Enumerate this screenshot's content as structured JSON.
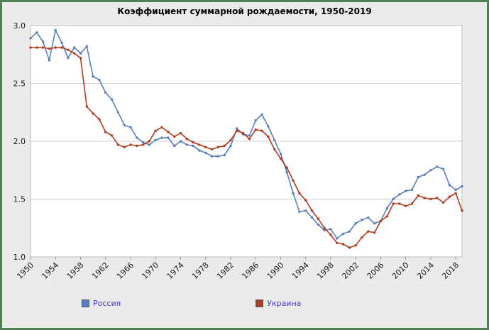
{
  "title": "Коэффициент суммарной рождаемости, 1950-2019",
  "colors": {
    "frame_border": "#4f7f53",
    "background": "#ebebeb",
    "plot_background": "#ffffff",
    "gridline": "#cfcfcf",
    "legend_text": "#4538c8",
    "russia": "#5a7fc0",
    "ukraine": "#b23b20"
  },
  "legend": [
    {
      "label": "Россия",
      "color": "#5a7fc0"
    },
    {
      "label": "Украина",
      "color": "#b23b20"
    }
  ],
  "chart_data": {
    "type": "line",
    "title": "Коэффициент суммарной рождаемости, 1950-2019",
    "xlabel": "",
    "ylabel": "",
    "ylim": [
      1.0,
      3.0
    ],
    "y_ticks": [
      1.0,
      1.5,
      2.0,
      2.5,
      3.0
    ],
    "x_tick_years": [
      1950,
      1954,
      1958,
      1962,
      1966,
      1970,
      1974,
      1978,
      1982,
      1986,
      1990,
      1994,
      1998,
      2002,
      2006,
      2010,
      2014,
      2018
    ],
    "grid": true,
    "legend_position": "bottom",
    "x": [
      1950,
      1951,
      1952,
      1953,
      1954,
      1955,
      1956,
      1957,
      1958,
      1959,
      1960,
      1961,
      1962,
      1963,
      1964,
      1965,
      1966,
      1967,
      1968,
      1969,
      1970,
      1971,
      1972,
      1973,
      1974,
      1975,
      1976,
      1977,
      1978,
      1979,
      1980,
      1981,
      1982,
      1983,
      1984,
      1985,
      1986,
      1987,
      1988,
      1989,
      1990,
      1991,
      1992,
      1993,
      1994,
      1995,
      1996,
      1997,
      1998,
      1999,
      2000,
      2001,
      2002,
      2003,
      2004,
      2005,
      2006,
      2007,
      2008,
      2009,
      2010,
      2011,
      2012,
      2013,
      2014,
      2015,
      2016,
      2017,
      2018,
      2019
    ],
    "series": [
      {
        "id": "russia",
        "name": "Россия",
        "color": "#5a7fc0",
        "values": [
          2.89,
          2.94,
          2.86,
          2.7,
          2.96,
          2.85,
          2.72,
          2.81,
          2.76,
          2.82,
          2.56,
          2.53,
          2.42,
          2.36,
          2.25,
          2.14,
          2.12,
          2.03,
          1.99,
          1.97,
          2.01,
          2.03,
          2.03,
          1.96,
          2.0,
          1.97,
          1.96,
          1.92,
          1.9,
          1.87,
          1.87,
          1.88,
          1.96,
          2.11,
          2.06,
          2.05,
          2.18,
          2.23,
          2.13,
          2.01,
          1.89,
          1.73,
          1.55,
          1.39,
          1.4,
          1.34,
          1.28,
          1.23,
          1.24,
          1.16,
          1.2,
          1.22,
          1.29,
          1.32,
          1.34,
          1.29,
          1.31,
          1.42,
          1.5,
          1.54,
          1.57,
          1.58,
          1.69,
          1.71,
          1.75,
          1.78,
          1.76,
          1.62,
          1.58,
          1.61
        ]
      },
      {
        "id": "ukraine",
        "name": "Украина",
        "color": "#b23b20",
        "values": [
          2.81,
          2.81,
          2.81,
          2.8,
          2.81,
          2.81,
          2.79,
          2.76,
          2.72,
          2.3,
          2.24,
          2.19,
          2.08,
          2.05,
          1.97,
          1.95,
          1.97,
          1.96,
          1.97,
          2.0,
          2.09,
          2.12,
          2.08,
          2.04,
          2.07,
          2.02,
          1.99,
          1.97,
          1.95,
          1.93,
          1.95,
          1.96,
          2.01,
          2.09,
          2.07,
          2.02,
          2.1,
          2.09,
          2.04,
          1.93,
          1.85,
          1.77,
          1.66,
          1.55,
          1.49,
          1.4,
          1.33,
          1.25,
          1.19,
          1.12,
          1.11,
          1.08,
          1.1,
          1.17,
          1.22,
          1.21,
          1.31,
          1.35,
          1.46,
          1.46,
          1.44,
          1.46,
          1.53,
          1.51,
          1.5,
          1.51,
          1.47,
          1.52,
          1.55,
          1.4
        ]
      }
    ]
  }
}
